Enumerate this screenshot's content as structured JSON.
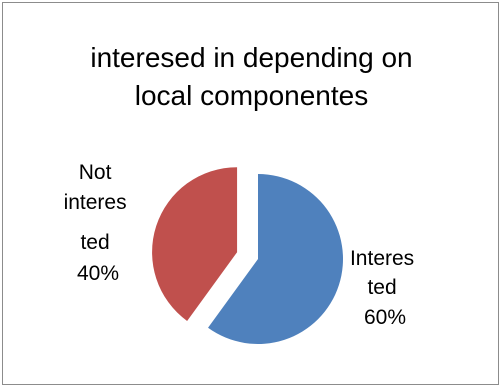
{
  "chart_data": {
    "type": "pie",
    "title_lines": [
      "interesed in depending on",
      "local componentes"
    ],
    "slices": [
      {
        "name": "Interested",
        "value": 60,
        "color": "#4f81bd",
        "exploded": false,
        "label_lines": [
          "Interes",
          "ted",
          "60%"
        ]
      },
      {
        "name": "Not interested",
        "value": 40,
        "color": "#c0504d",
        "exploded": true,
        "label_lines": [
          "Not",
          "interes",
          "ted",
          "40%"
        ]
      }
    ],
    "legend": "none"
  }
}
